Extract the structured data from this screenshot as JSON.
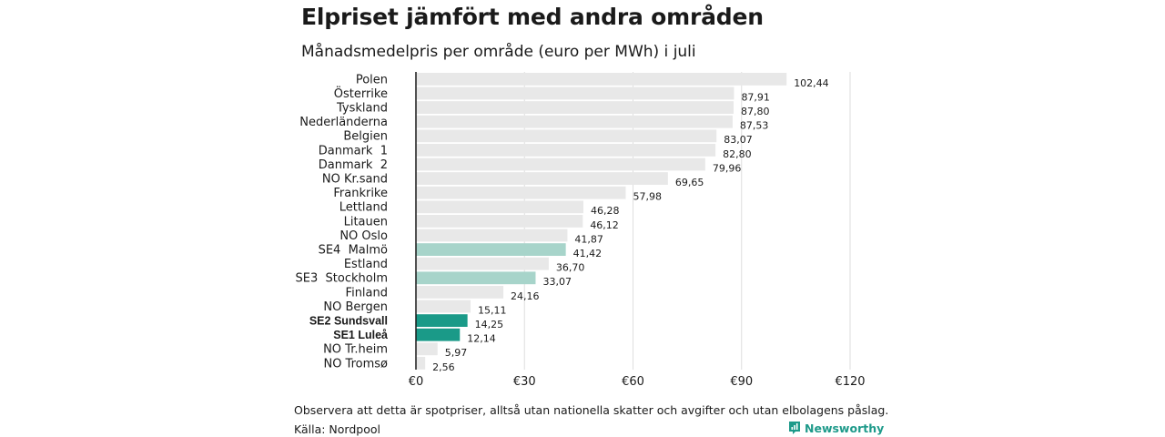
{
  "header": {
    "title": "Elpriset jämfört med andra områden",
    "subtitle": "Månadsmedelpris per område (euro per MWh) i juli"
  },
  "footer": {
    "note": "Observera att detta är spotpriser, alltså utan nationella skatter och avgifter och utan elbolagens påslag.",
    "source": "Källa: Nordpool",
    "brand": "Newsworthy"
  },
  "colors": {
    "default_bar": "#e8e8e8",
    "highlight_light": "#a7d4ca",
    "highlight_dark": "#1a9a88",
    "brand": "#1e9a8a"
  },
  "chart_data": {
    "type": "bar",
    "orientation": "horizontal",
    "categories": [
      "Polen",
      "Österrike",
      "Tyskland",
      "Nederländerna",
      "Belgien",
      "Danmark  1",
      "Danmark  2",
      "NO Kr.sand",
      "Frankrike",
      "Lettland",
      "Litauen",
      "NO Oslo",
      "SE4  Malmö",
      "Estland",
      "SE3  Stockholm",
      "Finland",
      "NO Bergen",
      "SE2 Sundsvall",
      "SE1 Luleå",
      "NO Tr.heim",
      "NO Tromsø"
    ],
    "values": [
      102.44,
      87.91,
      87.8,
      87.53,
      83.07,
      82.8,
      79.96,
      69.65,
      57.98,
      46.28,
      46.12,
      41.87,
      41.42,
      36.7,
      33.07,
      24.16,
      15.11,
      14.25,
      12.14,
      5.97,
      2.56
    ],
    "value_labels": [
      "102,44",
      "87,91",
      "87,80",
      "87,53",
      "83,07",
      "82,80",
      "79,96",
      "69,65",
      "57,98",
      "46,28",
      "46,12",
      "41,87",
      "41,42",
      "36,70",
      "33,07",
      "24,16",
      "15,11",
      "14,25",
      "12,14",
      "5,97",
      "2,56"
    ],
    "highlight": [
      "none",
      "none",
      "none",
      "none",
      "none",
      "none",
      "none",
      "none",
      "none",
      "none",
      "none",
      "none",
      "light",
      "none",
      "light",
      "none",
      "none",
      "dark",
      "dark",
      "none",
      "none"
    ],
    "bold_labels": [
      false,
      false,
      false,
      false,
      false,
      false,
      false,
      false,
      false,
      false,
      false,
      false,
      false,
      false,
      false,
      false,
      false,
      true,
      true,
      false,
      false
    ],
    "xlim": [
      0,
      120
    ],
    "x_ticks": [
      0,
      30,
      60,
      90,
      120
    ],
    "x_tick_labels": [
      "€0",
      "€30",
      "€60",
      "€90",
      "€120"
    ],
    "grid": true
  }
}
